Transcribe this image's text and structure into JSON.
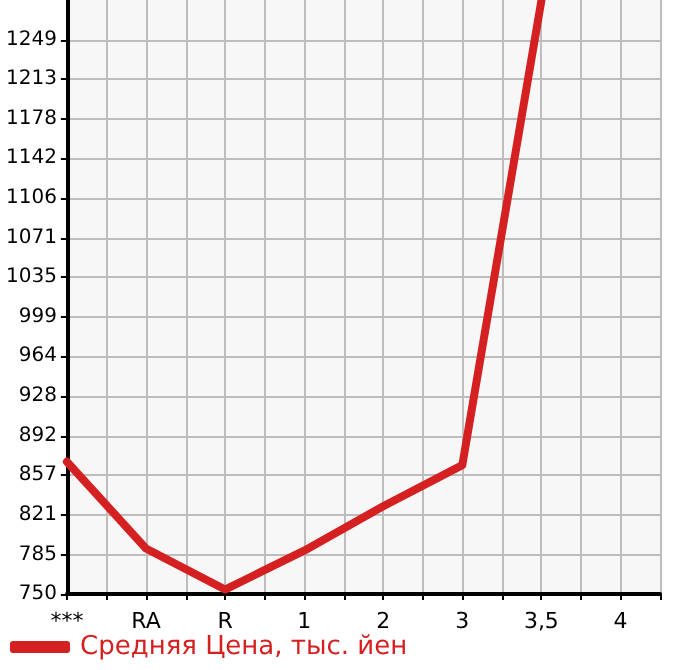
{
  "chart_data": {
    "type": "line",
    "categories": [
      "***",
      "RA",
      "R",
      "1",
      "2",
      "3",
      "3,5",
      "4"
    ],
    "series": [
      {
        "name": "Средняя Цена, тыс. йен",
        "color": "#d42020",
        "values": [
          869,
          791,
          754,
          789,
          829,
          866,
          1284,
          null
        ]
      }
    ],
    "ylim": [
      750,
      1284.6
    ],
    "yticks": [
      750,
      785,
      {
        "value": 821.3,
        "label": "821"
      },
      {
        "value": 856.9,
        "label": "857"
      },
      892,
      {
        "value": 928.2,
        "label": "928"
      },
      {
        "value": 963.8,
        "label": "964"
      },
      {
        "value": 999.5,
        "label": "999"
      },
      {
        "value": 1035.1,
        "label": "1035"
      },
      {
        "value": 1070.8,
        "label": "1071"
      },
      {
        "value": 1106.4,
        "label": "1106"
      },
      {
        "value": 1142,
        "label": "1142"
      },
      {
        "value": 1177.7,
        "label": "1178"
      },
      {
        "value": 1213.3,
        "label": "1213"
      },
      1249
    ],
    "grid": true,
    "legend": "bottom left",
    "marker": "none",
    "line_style": "solid"
  }
}
